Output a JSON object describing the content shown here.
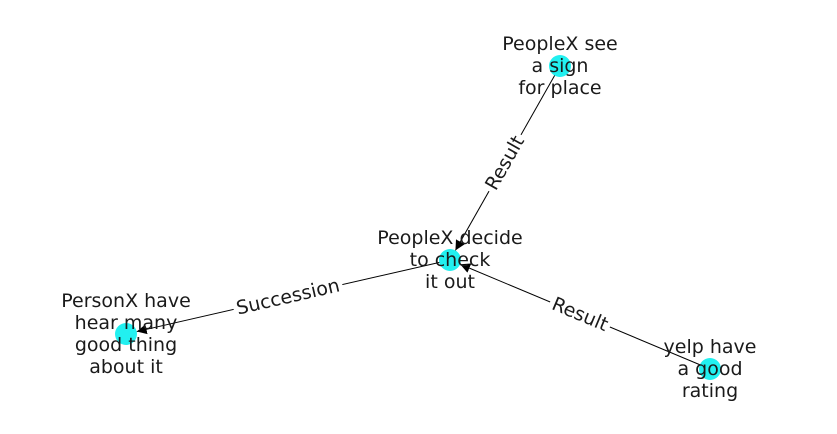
{
  "graph": {
    "node_color": "#22f0f0",
    "edge_color": "#000000",
    "nodes": [
      {
        "id": "sign",
        "lines": [
          "PeopleX see",
          "a sign",
          "for place"
        ]
      },
      {
        "id": "decide",
        "lines": [
          "PeopleX decide",
          "to check",
          "it out"
        ]
      },
      {
        "id": "hear",
        "lines": [
          "PersonX have",
          "hear many",
          "good thing",
          "about it"
        ]
      },
      {
        "id": "yelp",
        "lines": [
          "yelp have",
          "a good",
          "rating"
        ]
      }
    ],
    "edges": [
      {
        "from": "sign",
        "to": "decide",
        "label": "Result"
      },
      {
        "from": "decide",
        "to": "hear",
        "label": "Succession"
      },
      {
        "from": "yelp",
        "to": "decide",
        "label": "Result"
      }
    ]
  }
}
